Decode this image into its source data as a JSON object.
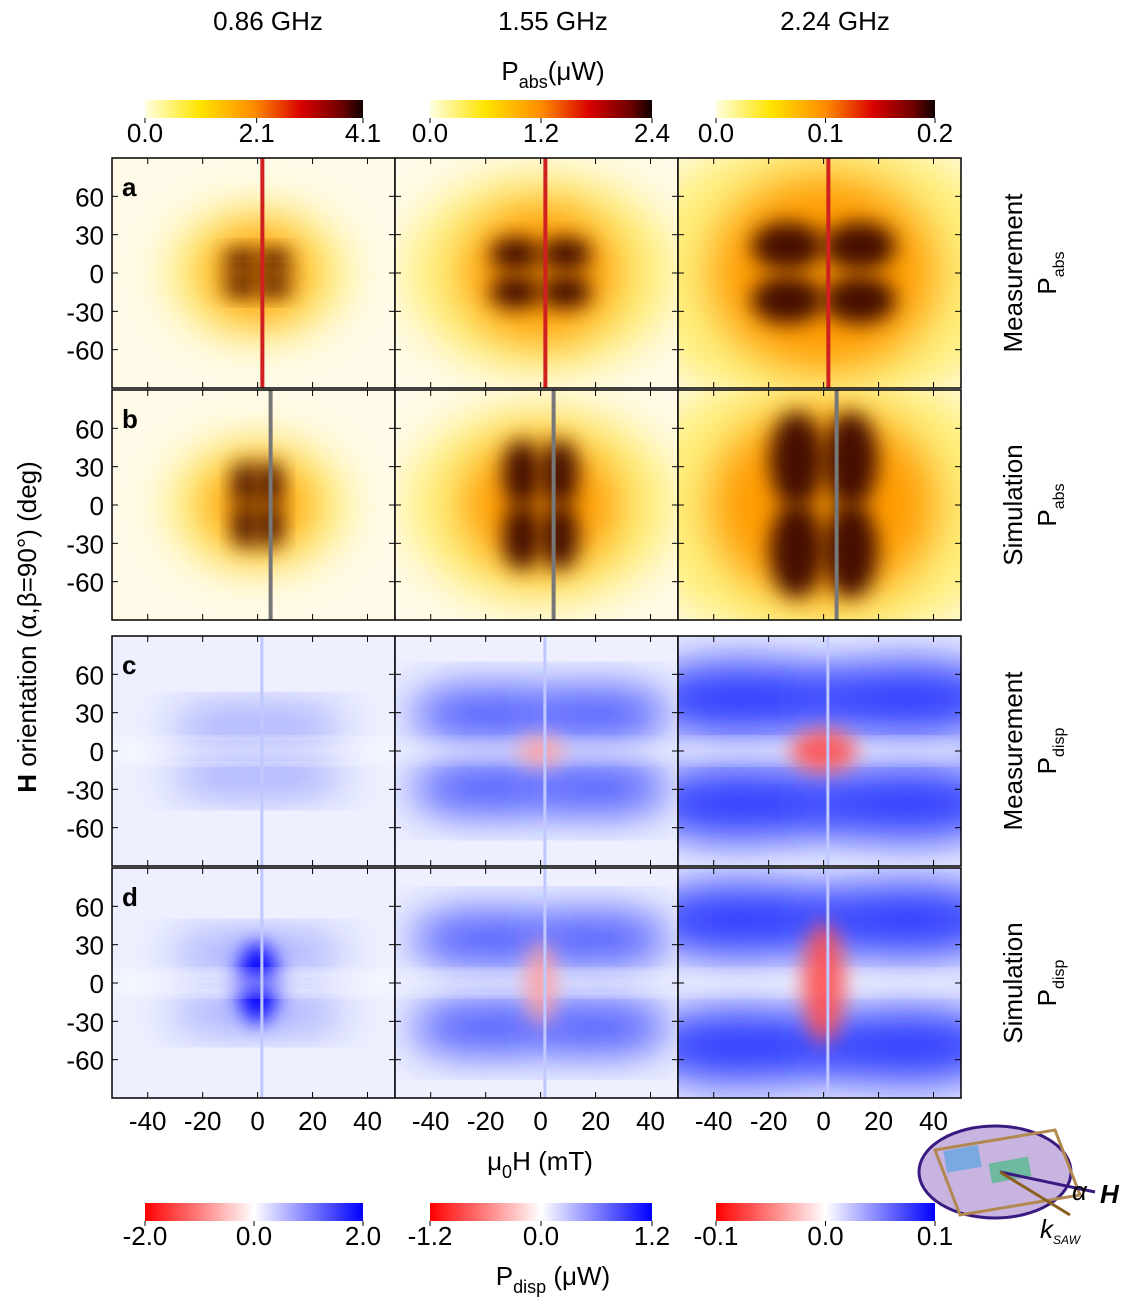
{
  "chart_data": {
    "type": "heatmap",
    "columns": [
      "0.86 GHz",
      "1.55 GHz",
      "2.24 GHz"
    ],
    "abs_label": {
      "main": "P",
      "sub": "abs",
      "rest": "(μW)"
    },
    "abs_colorbars": [
      {
        "ticks": [
          {
            "value": 0,
            "label": "0.0"
          },
          {
            "value": 2.1,
            "label": "2.1"
          },
          {
            "value": 4.1,
            "label": "4.1"
          }
        ]
      },
      {
        "ticks": [
          {
            "value": 0,
            "label": "0.0"
          },
          {
            "value": 1.2,
            "label": "1.2"
          },
          {
            "value": 2.4,
            "label": "2.4"
          }
        ]
      },
      {
        "ticks": [
          {
            "value": 0,
            "label": "0.0"
          },
          {
            "value": 0.1,
            "label": "0.1"
          },
          {
            "value": 0.2,
            "label": "0.2"
          }
        ]
      }
    ],
    "disp_label": {
      "main": "P",
      "sub": "disp",
      "rest": " (μW)"
    },
    "disp_colorbars": [
      {
        "ticks": [
          {
            "value": -2,
            "label": "-2.0"
          },
          {
            "value": 0,
            "label": "0.0"
          },
          {
            "value": 2,
            "label": "2.0"
          }
        ]
      },
      {
        "ticks": [
          {
            "value": -1.2,
            "label": "-1.2"
          },
          {
            "value": 0,
            "label": "0.0"
          },
          {
            "value": 1.2,
            "label": "1.2"
          }
        ]
      },
      {
        "ticks": [
          {
            "value": -0.1,
            "label": "-0.1"
          },
          {
            "value": 0,
            "label": "0.0"
          },
          {
            "value": 0.1,
            "label": "0.1"
          }
        ]
      }
    ],
    "xlim": [
      -53,
      50
    ],
    "xticks": [
      -40,
      -20,
      0,
      20,
      40
    ],
    "ylim": [
      -90,
      90
    ],
    "yticks": [
      60,
      30,
      0,
      -30,
      -60
    ],
    "xlabel": {
      "main": "μ",
      "sub": "0",
      "rest": "H (mT)"
    },
    "ylabel": {
      "bold": "H",
      "rest": " orientation (α,β=90°) (deg)"
    },
    "rows": [
      {
        "panel": "a",
        "kind": "Measurement",
        "quantity": {
          "main": "P",
          "sub": "abs"
        }
      },
      {
        "panel": "b",
        "kind": "Simulation",
        "quantity": {
          "main": "P",
          "sub": "abs"
        }
      },
      {
        "panel": "c",
        "kind": "Measurement",
        "quantity": {
          "main": "P",
          "sub": "disp"
        }
      },
      {
        "panel": "d",
        "kind": "Simulation",
        "quantity": {
          "main": "P",
          "sub": "disp"
        }
      }
    ],
    "inset": {
      "h": "H",
      "alpha": "α",
      "k": "k",
      "k_sub": "SAW"
    }
  }
}
